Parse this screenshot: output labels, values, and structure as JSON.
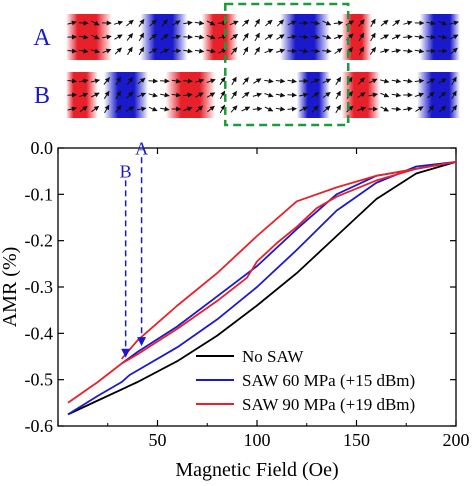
{
  "panels": [
    {
      "label": "A",
      "domains": [
        {
          "x0": 0.0,
          "x1": 0.15,
          "color": "#e8202a"
        },
        {
          "x0": 0.28,
          "x1": 0.42,
          "color": "#1a1acc"
        },
        {
          "x0": 0.5,
          "x1": 0.6,
          "color": "#e8202a"
        },
        {
          "x0": 0.78,
          "x1": 0.93,
          "color": "#1a1acc"
        },
        {
          "x0": 1.0,
          "x1": 1.08,
          "color": "#e8202a"
        },
        {
          "x0": 1.28,
          "x1": 1.41,
          "color": "#1a1acc"
        }
      ]
    },
    {
      "label": "B",
      "domains": [
        {
          "x0": 0.0,
          "x1": 0.1,
          "color": "#e8202a"
        },
        {
          "x0": 0.15,
          "x1": 0.28,
          "color": "#1a1acc"
        },
        {
          "x0": 0.37,
          "x1": 0.52,
          "color": "#e8202a"
        },
        {
          "x0": 0.84,
          "x1": 0.93,
          "color": "#1a1acc"
        },
        {
          "x0": 1.0,
          "x1": 1.11,
          "color": "#e8202a"
        },
        {
          "x0": 1.27,
          "x1": 1.41,
          "color": "#1a1acc"
        }
      ]
    }
  ],
  "highlight_box": {
    "x0": 0.57,
    "x1": 1.01,
    "color": "#1e9a3e"
  },
  "chart_data": {
    "type": "line",
    "xlabel": "Magnetic Field (Oe)",
    "ylabel": "AMR (%)",
    "xlim": [
      0,
      200
    ],
    "ylim": [
      -0.6,
      0.0
    ],
    "xticks": [
      0,
      50,
      100,
      150,
      200
    ],
    "xtick_labels": [
      "",
      "50",
      "100",
      "150",
      "200"
    ],
    "yticks": [
      -0.6,
      -0.5,
      -0.4,
      -0.3,
      -0.2,
      -0.1,
      0.0
    ],
    "ytick_labels": [
      "-0.6",
      "-0.5",
      "-0.4",
      "-0.3",
      "-0.2",
      "-0.1",
      "0.0"
    ],
    "legend_position": "bottom-right",
    "grid": false,
    "series": [
      {
        "name": "No SAW",
        "color": "#000000",
        "x": [
          5,
          20,
          40,
          60,
          80,
          100,
          120,
          140,
          160,
          180,
          200
        ],
        "y": [
          -0.575,
          -0.545,
          -0.505,
          -0.46,
          -0.405,
          -0.34,
          -0.27,
          -0.19,
          -0.11,
          -0.055,
          -0.03
        ]
      },
      {
        "name": "SAW 60 MPa (+15 dBm)",
        "color": "#1a1acc",
        "x": [
          5,
          20,
          32,
          36,
          40,
          60,
          80,
          100,
          120,
          140,
          160,
          180,
          200,
          160,
          140,
          120,
          100,
          80,
          60,
          40,
          32
        ],
        "y": [
          -0.575,
          -0.535,
          -0.505,
          -0.49,
          -0.48,
          -0.43,
          -0.37,
          -0.3,
          -0.22,
          -0.135,
          -0.075,
          -0.04,
          -0.03,
          -0.06,
          -0.1,
          -0.175,
          -0.255,
          -0.32,
          -0.385,
          -0.44,
          -0.465
        ]
      },
      {
        "name": "SAW 90 MPa (+19 dBm)",
        "color": "#e8202a",
        "x": [
          5,
          20,
          32,
          40,
          60,
          80,
          95,
          100,
          110,
          120,
          130,
          140,
          160,
          180,
          200,
          160,
          140,
          120,
          100,
          80,
          60,
          40,
          32
        ],
        "y": [
          -0.55,
          -0.505,
          -0.465,
          -0.445,
          -0.39,
          -0.33,
          -0.28,
          -0.245,
          -0.205,
          -0.17,
          -0.13,
          -0.105,
          -0.07,
          -0.045,
          -0.03,
          -0.06,
          -0.085,
          -0.115,
          -0.19,
          -0.27,
          -0.34,
          -0.415,
          -0.455
        ]
      }
    ],
    "annotations": [
      {
        "text": "A",
        "x": 42,
        "y_top": -0.02,
        "y_bottom": -0.43,
        "color": "#1a1acc"
      },
      {
        "text": "B",
        "x": 34,
        "y_top": -0.07,
        "y_bottom": -0.455,
        "color": "#1a1acc"
      }
    ]
  }
}
